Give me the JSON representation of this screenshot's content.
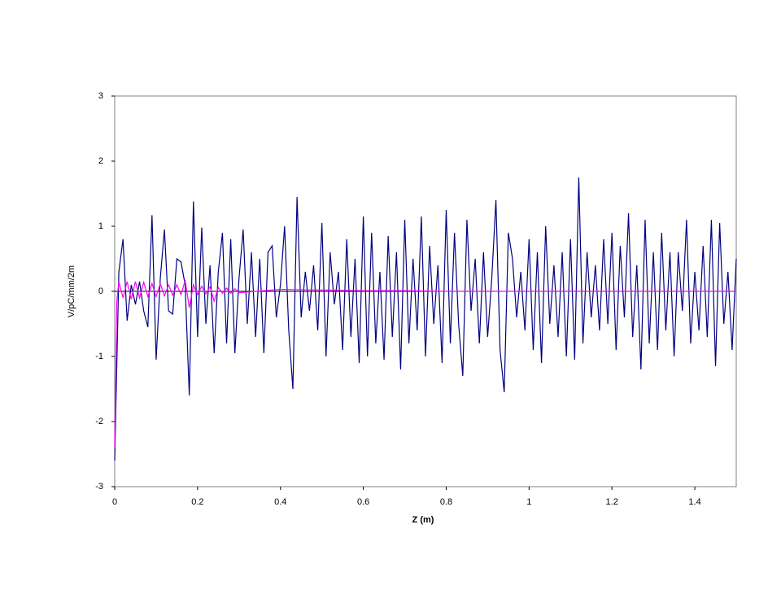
{
  "chart_data": {
    "type": "line",
    "xlabel": "Z (m)",
    "ylabel": "V/pC/mm/2m",
    "xlim": [
      0,
      1.5
    ],
    "xticks": [
      0,
      0.2,
      0.4,
      0.6,
      0.8,
      1,
      1.2,
      1.4
    ],
    "ylim": [
      -3,
      3
    ],
    "yticks": [
      -3,
      -2,
      -1,
      0,
      1,
      2,
      3
    ],
    "grid": false,
    "series": [
      {
        "color": "#000080",
        "x": [
          0,
          0.01,
          0.02,
          0.03,
          0.04,
          0.05,
          0.06,
          0.07,
          0.08,
          0.09,
          0.1,
          0.11,
          0.12,
          0.13,
          0.14,
          0.15,
          0.16,
          0.17,
          0.18,
          0.19,
          0.2,
          0.21,
          0.22,
          0.23,
          0.24,
          0.25,
          0.26,
          0.27,
          0.28,
          0.29,
          0.3,
          0.31,
          0.32,
          0.33,
          0.34,
          0.35,
          0.36,
          0.37,
          0.38,
          0.39,
          0.4,
          0.41,
          0.42,
          0.43,
          0.44,
          0.45,
          0.46,
          0.47,
          0.48,
          0.49,
          0.5,
          0.51,
          0.52,
          0.53,
          0.54,
          0.55,
          0.56,
          0.57,
          0.58,
          0.59,
          0.6,
          0.61,
          0.62,
          0.63,
          0.64,
          0.65,
          0.66,
          0.67,
          0.68,
          0.69,
          0.7,
          0.71,
          0.72,
          0.73,
          0.74,
          0.75,
          0.76,
          0.77,
          0.78,
          0.79,
          0.8,
          0.81,
          0.82,
          0.83,
          0.84,
          0.85,
          0.86,
          0.87,
          0.88,
          0.89,
          0.9,
          0.91,
          0.92,
          0.93,
          0.94,
          0.95,
          0.96,
          0.97,
          0.98,
          0.99,
          1,
          1.01,
          1.02,
          1.03,
          1.04,
          1.05,
          1.06,
          1.07,
          1.08,
          1.09,
          1.1,
          1.11,
          1.12,
          1.13,
          1.14,
          1.15,
          1.16,
          1.17,
          1.18,
          1.19,
          1.2,
          1.21,
          1.22,
          1.23,
          1.24,
          1.25,
          1.26,
          1.27,
          1.28,
          1.29,
          1.3,
          1.31,
          1.32,
          1.33,
          1.34,
          1.35,
          1.36,
          1.37,
          1.38,
          1.39,
          1.4,
          1.41,
          1.42,
          1.43,
          1.44,
          1.45,
          1.46,
          1.47,
          1.48,
          1.49,
          1.5
        ],
        "values": [
          -2.6,
          0.3,
          0.8,
          -0.45,
          0.1,
          -0.2,
          0.15,
          -0.3,
          -0.55,
          1.17,
          -1.05,
          0.2,
          0.95,
          -0.3,
          -0.35,
          0.5,
          0.45,
          0.1,
          -1.6,
          1.38,
          -0.7,
          0.98,
          -0.5,
          0.4,
          -0.95,
          0.3,
          0.9,
          -0.8,
          0.8,
          -0.95,
          0.2,
          0.95,
          -0.5,
          0.6,
          -0.7,
          0.5,
          -0.95,
          0.6,
          0.7,
          -0.4,
          0.1,
          1.0,
          -0.6,
          -1.5,
          1.45,
          -0.4,
          0.3,
          -0.3,
          0.4,
          -0.6,
          1.05,
          -1.0,
          0.6,
          -0.2,
          0.3,
          -0.9,
          0.8,
          -0.7,
          0.5,
          -1.1,
          1.15,
          -1.0,
          0.9,
          -0.8,
          0.3,
          -1.05,
          0.85,
          -0.7,
          0.6,
          -1.2,
          1.1,
          -0.8,
          0.5,
          -0.6,
          1.15,
          -1.0,
          0.7,
          -0.5,
          0.4,
          -1.1,
          1.25,
          -0.8,
          0.9,
          -0.5,
          -1.3,
          1.1,
          -0.3,
          0.5,
          -0.8,
          0.6,
          -0.7,
          0.2,
          1.4,
          -0.9,
          -1.55,
          0.9,
          0.5,
          -0.4,
          0.3,
          -0.6,
          0.8,
          -0.9,
          0.6,
          -1.1,
          1.0,
          -0.5,
          0.4,
          -0.7,
          0.6,
          -1.0,
          0.8,
          -1.05,
          1.75,
          -0.8,
          0.6,
          -0.4,
          0.4,
          -0.6,
          0.8,
          -0.5,
          0.9,
          -0.9,
          0.7,
          -0.4,
          1.2,
          -0.7,
          0.4,
          -1.2,
          1.1,
          -0.8,
          0.6,
          -0.9,
          0.9,
          -0.6,
          0.6,
          -1.0,
          0.6,
          -0.3,
          1.1,
          -0.8,
          0.3,
          -0.6,
          0.7,
          -0.7,
          1.1,
          -1.15,
          1.05,
          -0.5,
          0.3,
          -0.9,
          0.5
        ]
      },
      {
        "color": "#ff00ff",
        "x": [
          0,
          0.005,
          0.01,
          0.02,
          0.03,
          0.04,
          0.05,
          0.06,
          0.07,
          0.08,
          0.09,
          0.1,
          0.11,
          0.12,
          0.13,
          0.14,
          0.15,
          0.16,
          0.17,
          0.18,
          0.19,
          0.2,
          0.21,
          0.22,
          0.23,
          0.24,
          0.25,
          0.26,
          0.27,
          0.28,
          0.29,
          0.3,
          0.4,
          0.5,
          0.6,
          0.7,
          0.8,
          0.9,
          1,
          1.1,
          1.2,
          1.3,
          1.4,
          1.5
        ],
        "values": [
          -2.4,
          -0.15,
          0.15,
          -0.1,
          0.15,
          -0.12,
          0.15,
          -0.1,
          0.14,
          -0.08,
          0.12,
          -0.08,
          0.12,
          -0.07,
          0.1,
          -0.06,
          0.1,
          -0.05,
          0.17,
          -0.25,
          0.1,
          -0.05,
          0.08,
          -0.04,
          0.07,
          -0.15,
          0.06,
          -0.03,
          0.05,
          -0.03,
          0.04,
          -0.02,
          0.03,
          0.02,
          0.01,
          0.01,
          0,
          0,
          0,
          0,
          0,
          0,
          0,
          0
        ]
      }
    ]
  }
}
